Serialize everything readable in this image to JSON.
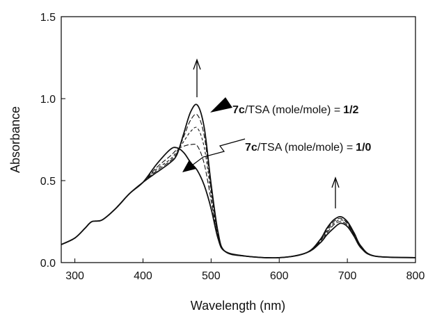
{
  "chart_data": {
    "type": "line",
    "xlabel": "Wavelength (nm)",
    "ylabel": "Absorbance",
    "xlim": [
      280,
      800
    ],
    "ylim": [
      0.0,
      1.5
    ],
    "x_ticks": [
      300,
      400,
      500,
      600,
      700,
      800
    ],
    "y_ticks": [
      "0.0",
      "0.5",
      "1.0",
      "1.5"
    ],
    "grid": false,
    "legend": "none",
    "x": [
      280,
      300,
      315,
      325,
      340,
      360,
      380,
      400,
      420,
      440,
      450,
      460,
      470,
      480,
      490,
      500,
      510,
      520,
      550,
      600,
      640,
      660,
      670,
      680,
      690,
      700,
      710,
      720,
      740,
      800
    ],
    "series": [
      {
        "values": [
          0.11,
          0.15,
          0.21,
          0.25,
          0.26,
          0.33,
          0.42,
          0.49,
          0.6,
          0.69,
          0.7,
          0.67,
          0.61,
          0.56,
          0.47,
          0.33,
          0.15,
          0.07,
          0.04,
          0.03,
          0.06,
          0.12,
          0.17,
          0.21,
          0.24,
          0.22,
          0.16,
          0.09,
          0.04,
          0.03
        ]
      },
      {
        "values": [
          0.11,
          0.15,
          0.21,
          0.25,
          0.26,
          0.33,
          0.42,
          0.49,
          0.58,
          0.65,
          0.69,
          0.71,
          0.72,
          0.71,
          0.6,
          0.38,
          0.16,
          0.07,
          0.04,
          0.03,
          0.06,
          0.12,
          0.18,
          0.23,
          0.25,
          0.23,
          0.17,
          0.1,
          0.04,
          0.03
        ]
      },
      {
        "values": [
          0.11,
          0.15,
          0.21,
          0.25,
          0.26,
          0.33,
          0.42,
          0.49,
          0.57,
          0.63,
          0.68,
          0.74,
          0.8,
          0.82,
          0.7,
          0.42,
          0.17,
          0.07,
          0.04,
          0.03,
          0.06,
          0.13,
          0.19,
          0.24,
          0.26,
          0.24,
          0.17,
          0.1,
          0.04,
          0.03
        ]
      },
      {
        "values": [
          0.11,
          0.15,
          0.21,
          0.25,
          0.26,
          0.33,
          0.42,
          0.49,
          0.56,
          0.62,
          0.67,
          0.77,
          0.87,
          0.9,
          0.77,
          0.45,
          0.18,
          0.07,
          0.04,
          0.03,
          0.06,
          0.13,
          0.2,
          0.25,
          0.27,
          0.24,
          0.17,
          0.1,
          0.04,
          0.03
        ]
      },
      {
        "values": [
          0.11,
          0.15,
          0.21,
          0.25,
          0.26,
          0.33,
          0.42,
          0.49,
          0.55,
          0.61,
          0.66,
          0.79,
          0.92,
          0.96,
          0.82,
          0.48,
          0.19,
          0.07,
          0.04,
          0.03,
          0.06,
          0.14,
          0.21,
          0.26,
          0.28,
          0.25,
          0.18,
          0.1,
          0.04,
          0.03
        ]
      }
    ],
    "annotations": [
      {
        "bold": "7c",
        "text": "/TSA  (mole/mole)  =",
        "ratio": "1/2"
      },
      {
        "bold": "7c",
        "text": "/TSA  (mole/mole)  =",
        "ratio": "1/0"
      }
    ]
  }
}
